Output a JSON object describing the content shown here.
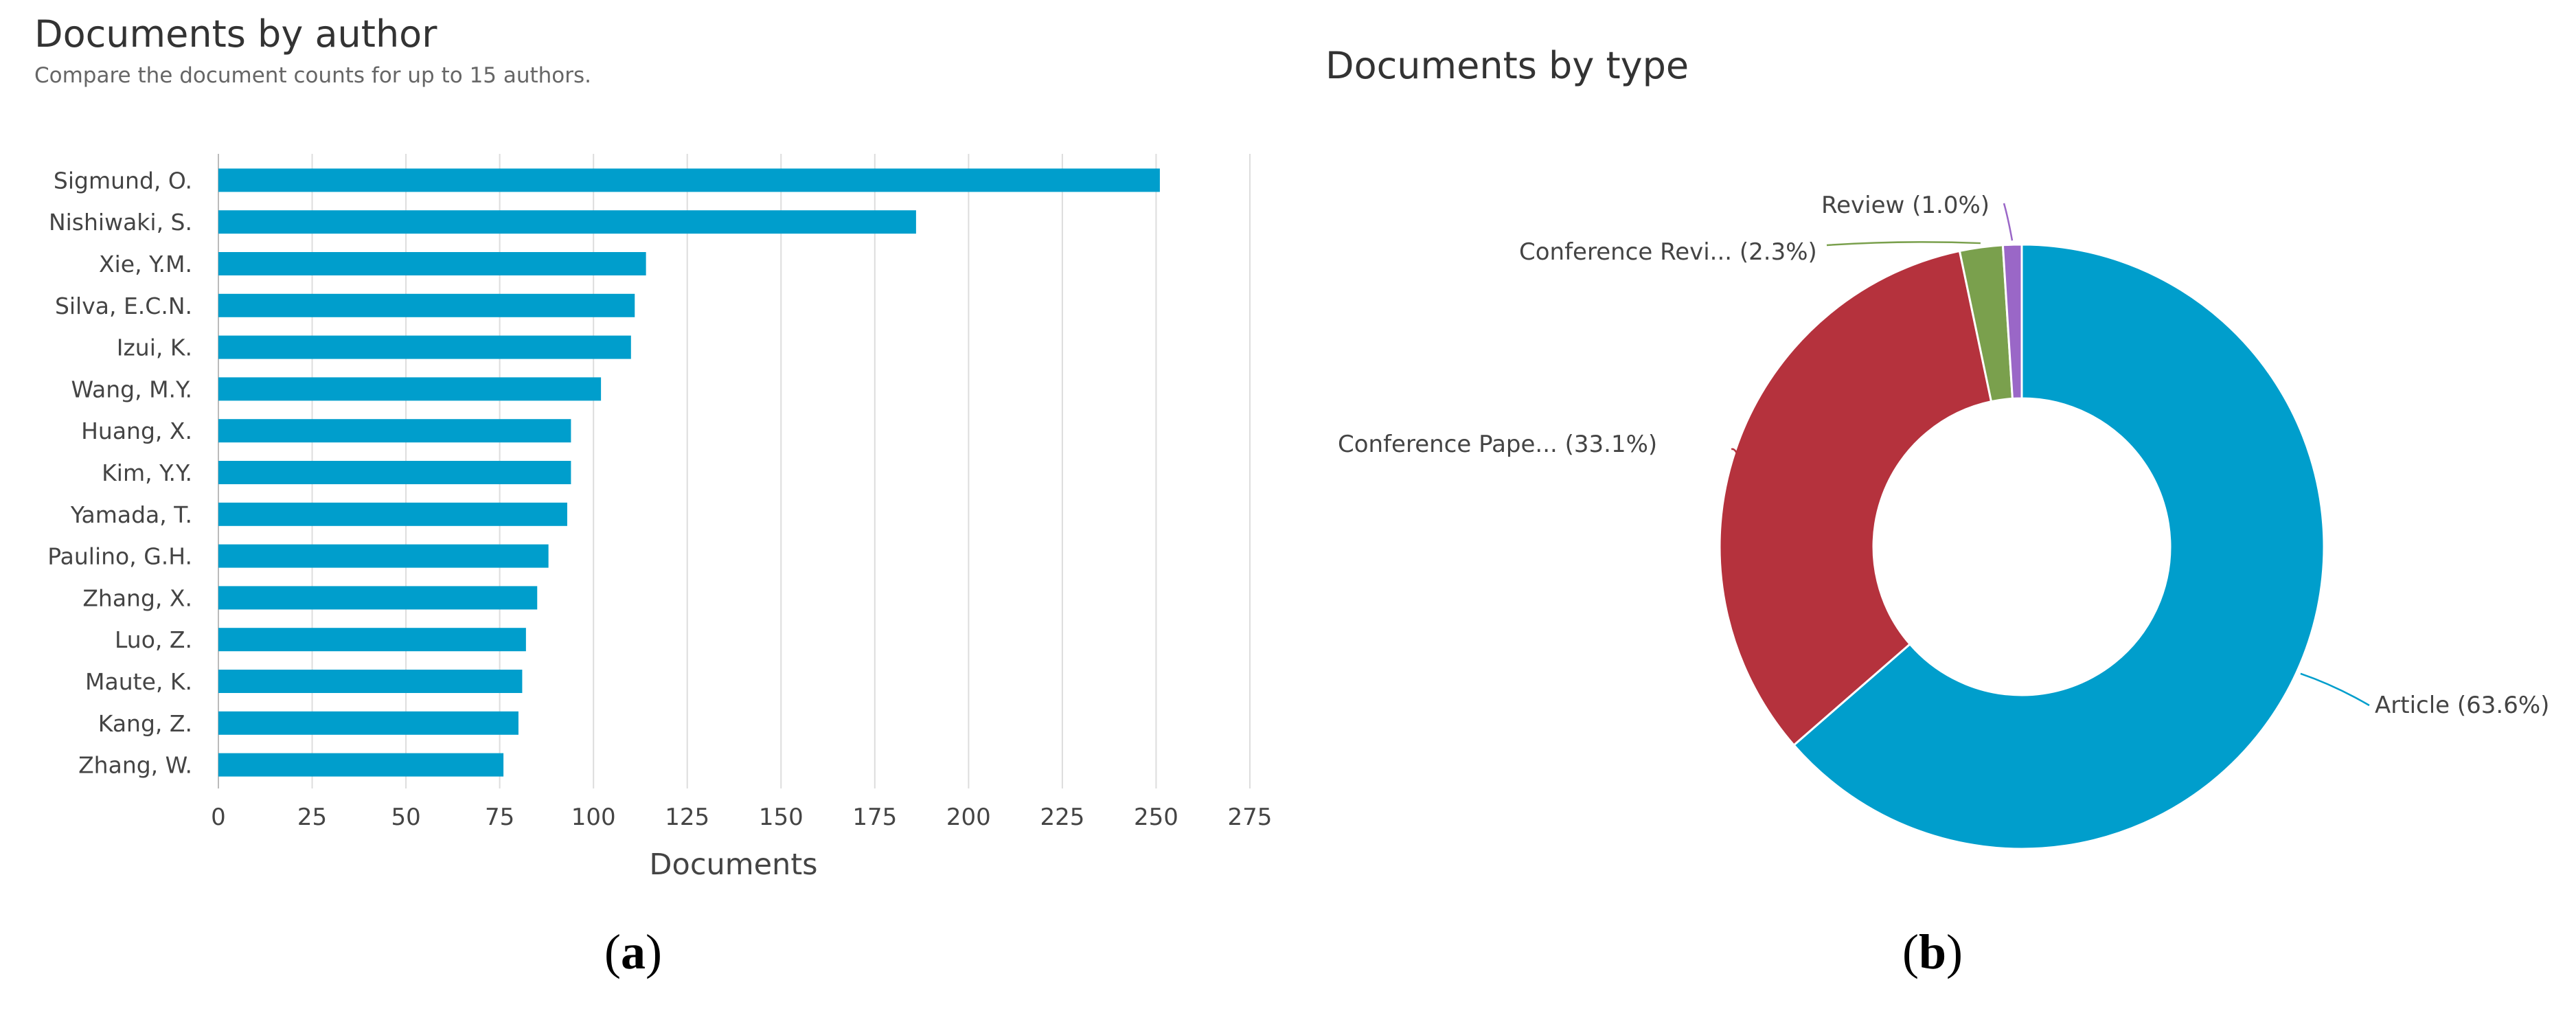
{
  "left_panel": {
    "title": "Documents by author",
    "subtitle": "Compare the document counts for up to 15 authors.",
    "caption_open": "(",
    "caption_letter": "a",
    "caption_close": ")"
  },
  "right_panel": {
    "title": "Documents by type",
    "caption_open": "(",
    "caption_letter": "b",
    "caption_close": ")"
  },
  "colors": {
    "bar": "#009ecc",
    "article": "#009ecc",
    "conference_paper": "#b5323d",
    "conference_review": "#7aa04d",
    "review": "#9a67c7",
    "grid": "#dddddd",
    "axis_text": "#444444"
  },
  "chart_data": [
    {
      "type": "bar",
      "orientation": "horizontal",
      "title": "Documents by author",
      "subtitle": "Compare the document counts for up to 15 authors.",
      "xlabel": "Documents",
      "ylabel": "",
      "xlim": [
        0,
        275
      ],
      "xticks": [
        0,
        25,
        50,
        75,
        100,
        125,
        150,
        175,
        200,
        225,
        250,
        275
      ],
      "grid": true,
      "categories": [
        "Sigmund, O.",
        "Nishiwaki, S.",
        "Xie, Y.M.",
        "Silva, E.C.N.",
        "Izui, K.",
        "Wang, M.Y.",
        "Huang, X.",
        "Kim, Y.Y.",
        "Yamada, T.",
        "Paulino, G.H.",
        "Zhang, X.",
        "Luo, Z.",
        "Maute, K.",
        "Kang, Z.",
        "Zhang, W."
      ],
      "values": [
        251,
        186,
        114,
        111,
        110,
        102,
        94,
        94,
        93,
        88,
        85,
        82,
        81,
        80,
        76
      ]
    },
    {
      "type": "pie",
      "donut": true,
      "title": "Documents by type",
      "slices": [
        {
          "label": "Article (63.6%)",
          "value": 63.6,
          "color_key": "article"
        },
        {
          "label": "Conference Pape... (33.1%)",
          "value": 33.1,
          "color_key": "conference_paper"
        },
        {
          "label": "Conference Revi... (2.3%)",
          "value": 2.3,
          "color_key": "conference_review"
        },
        {
          "label": "Review (1.0%)",
          "value": 1.0,
          "color_key": "review"
        }
      ]
    }
  ]
}
